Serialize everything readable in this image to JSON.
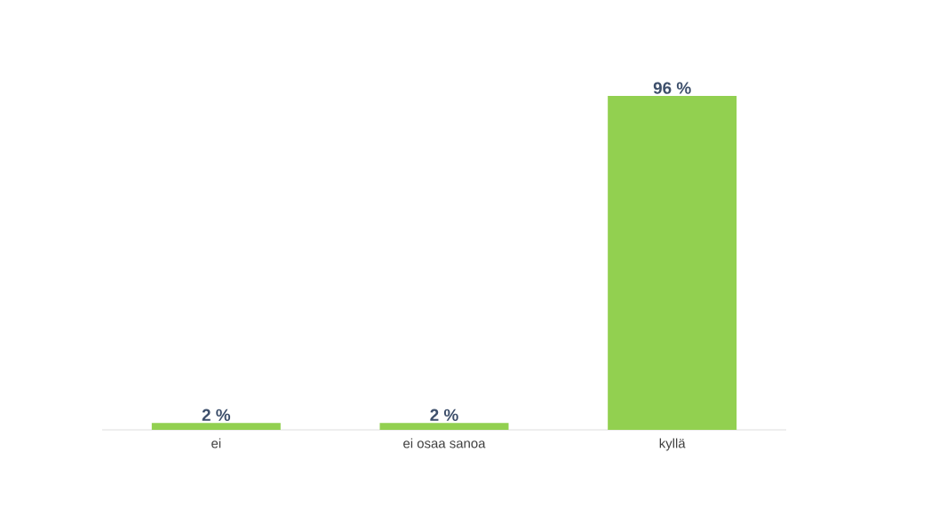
{
  "chart_data": {
    "type": "bar",
    "categories": [
      "ei",
      "ei osaa sanoa",
      "kyllä"
    ],
    "values": [
      2,
      2,
      96
    ],
    "value_labels": [
      "2 %",
      "2 %",
      "96 %"
    ],
    "color": "#92d050",
    "tick_labels": "x"
  }
}
